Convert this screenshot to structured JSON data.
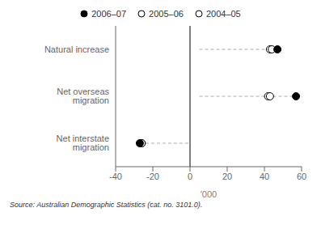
{
  "chart_data": {
    "type": "scatter",
    "orientation": "horizontal",
    "xlabel": "'000",
    "categories": [
      "Natural increase",
      "Net overseas migration",
      "Net interstate migration"
    ],
    "series": [
      {
        "name": "2006–07",
        "color": "#000000",
        "marker": "filled_circle",
        "values": [
          47,
          57,
          -27
        ]
      },
      {
        "name": "2005–06",
        "color": "#000000",
        "marker": "open_circle",
        "values": [
          44,
          43,
          -26
        ]
      },
      {
        "name": "2004–05",
        "color": "#000000",
        "marker": "open_circle",
        "values": [
          43,
          42,
          -26
        ]
      }
    ],
    "lines": {
      "color": "#aaaaaa",
      "line_style": "dashed",
      "values": [
        [
          5,
          47
        ],
        [
          5,
          57
        ],
        [
          -27,
          0
        ]
      ]
    },
    "reference_x": 0,
    "xlim": [
      -40,
      60
    ],
    "xticks": [
      -40,
      -20,
      0,
      20,
      40,
      60
    ],
    "grid": false,
    "legend": "top",
    "source": "Source: Australian Demographic Statistics (cat. no. 3101.0)."
  }
}
